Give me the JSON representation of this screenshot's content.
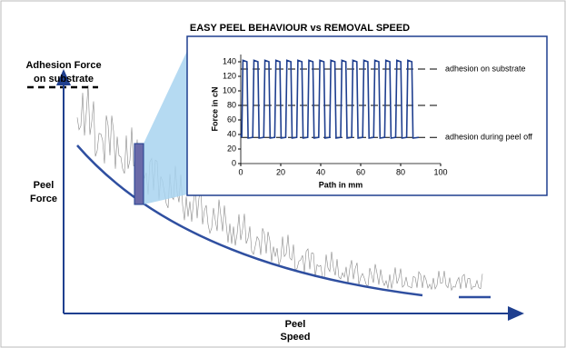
{
  "title": "EASY PEEL BEHAVIOUR vs REMOVAL SPEED",
  "adhesion_label": [
    "Adhesion Force",
    "on substrate"
  ],
  "y_axis_label": [
    "Peel",
    "Force"
  ],
  "x_axis_label": [
    "Peel",
    "Speed"
  ],
  "chart_data": {
    "type": "line",
    "xlabel": "Path in mm",
    "ylabel": "Force in cN",
    "xlim": [
      0,
      100
    ],
    "xticks": [
      0,
      20,
      40,
      60,
      80,
      100
    ],
    "ylim": [
      0,
      150
    ],
    "yticks": [
      0,
      20,
      40,
      60,
      80,
      100,
      120,
      140
    ],
    "color": "#1f3f8f",
    "x": [
      0,
      0.5,
      1.1,
      3.1,
      3.7,
      6,
      6.6,
      8.6,
      9.2,
      11.5,
      12.1,
      14.1,
      14.7,
      17,
      17.6,
      19.6,
      20.2,
      22.5,
      23.1,
      25.1,
      25.7,
      28,
      28.6,
      30.6,
      31.2,
      33.5,
      34.1,
      36.1,
      36.7,
      39,
      39.6,
      41.6,
      42.2,
      44.5,
      45.1,
      47.1,
      47.7,
      50,
      50.6,
      52.6,
      53.2,
      55.5,
      56.1,
      58.1,
      58.7,
      61,
      61.6,
      63.6,
      64.2,
      66.5,
      67.1,
      69.1,
      69.7,
      72,
      72.6,
      74.6,
      75.2,
      77.5,
      78.1,
      80.1,
      80.7,
      83,
      83.6,
      85.6,
      86.2,
      89
    ],
    "values": [
      40,
      36,
      142,
      140,
      35,
      36,
      142,
      140,
      35,
      36,
      142,
      140,
      35,
      36,
      142,
      140,
      35,
      36,
      142,
      140,
      35,
      36,
      142,
      140,
      35,
      36,
      142,
      140,
      35,
      36,
      142,
      140,
      35,
      36,
      142,
      140,
      35,
      36,
      142,
      140,
      35,
      36,
      142,
      140,
      35,
      36,
      142,
      140,
      35,
      36,
      142,
      140,
      35,
      36,
      142,
      140,
      35,
      36,
      142,
      140,
      35,
      36,
      142,
      140,
      35,
      36
    ],
    "annotations": [
      {
        "value": 130,
        "label": "adhesion on substrate"
      },
      {
        "value": 80
      },
      {
        "value": 36,
        "label": "adhesion during peel off"
      }
    ]
  }
}
